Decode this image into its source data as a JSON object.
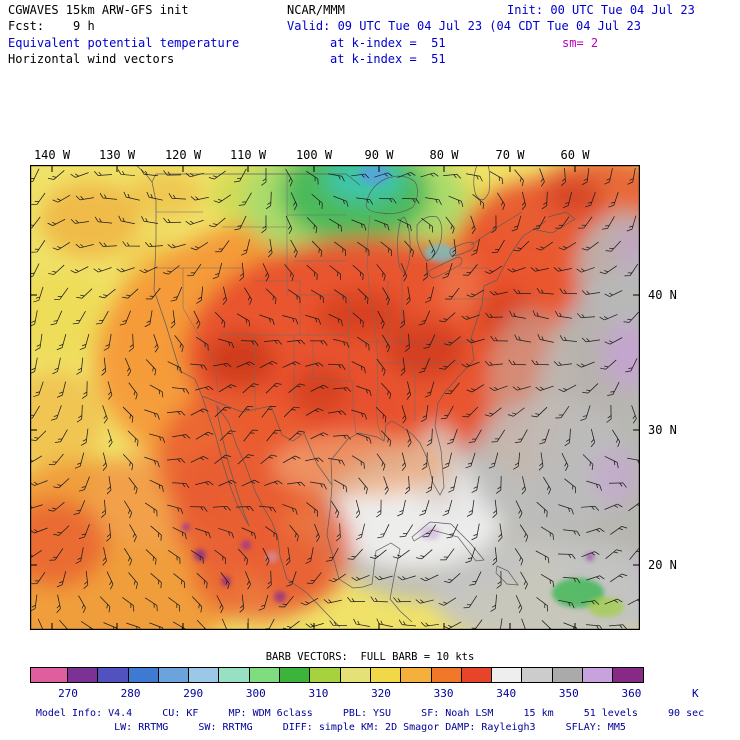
{
  "header": {
    "model_title": "CGWAVES 15km ARW-GFS init",
    "center_name": "NCAR/MMM",
    "init_time": "Init: 00 UTC Tue 04 Jul 23",
    "forecast": "Fcst:    9 h",
    "valid_time": "Valid: 09 UTC Tue 04 Jul 23 (04 CDT Tue 04 Jul 23",
    "field1_name": "Equivalent potential temperature",
    "field1_level": "at k-index =  51",
    "field2_name": "Horizontal wind vectors",
    "field2_level": "at k-index =  51",
    "smoothing": "sm= 2"
  },
  "map": {
    "lon_labels": [
      "140 W",
      "130 W",
      "120 W",
      "110 W",
      "100 W",
      "90 W",
      "80 W",
      "70 W",
      "60 W"
    ],
    "lat_labels": [
      "40 N",
      "30 N",
      "20 N"
    ]
  },
  "barb_legend": "BARB VECTORS:  FULL BARB = 10 kts",
  "colorbar": {
    "unit_label": "K",
    "tick_labels": [
      "270",
      "280",
      "290",
      "300",
      "310",
      "320",
      "330",
      "340",
      "350",
      "360"
    ],
    "segment_colors": [
      "#df5f9e",
      "#7b3294",
      "#5152c0",
      "#3f7ad2",
      "#6ba3dc",
      "#9cc8e8",
      "#98e0c4",
      "#7fdc7f",
      "#3cb43c",
      "#a6d23e",
      "#e4e277",
      "#f0d848",
      "#f5b03c",
      "#f07828",
      "#e8442a",
      "#eeeeee",
      "#cccccc",
      "#aaaaaa",
      "#c8a2dc",
      "#862a86"
    ],
    "segment_ranges": [
      "<270",
      "270-275",
      "275-280",
      "280-285",
      "285-290",
      "290-295",
      "295-300",
      "300-305",
      "305-310",
      "310-315",
      "315-320",
      "320-325",
      "325-330",
      "330-335",
      "335-340",
      "340-345",
      "345-350",
      "350-355",
      "355-360",
      ">360"
    ]
  },
  "footer": {
    "line1": "Model Info: V4.4     CU: KF     MP: WDM 6class     PBL: YSU     SF: Noah LSM     15 km     51 levels     90 sec",
    "line2": "LW: RRTMG     SW: RRTMG     DIFF: simple KM: 2D Smagor DAMP: Rayleigh3     SFLAY: MM5"
  },
  "colors": {
    "black": "#000000",
    "blue": "#0000cc",
    "magenta": "#bb00bb",
    "navy": "#000099"
  },
  "chart_data": {
    "type": "heatmap",
    "title": "Equivalent potential temperature (K) with horizontal wind vectors at k-index = 51",
    "model": "CGWAVES 15km ARW-GFS init, 9 h forecast",
    "valid": "09 UTC Tue 04 Jul 23 (04 CDT Tue 04 Jul 23",
    "init": "00 UTC Tue 04 Jul 23",
    "x_axis": {
      "label": "longitude",
      "ticks": [
        "140 W",
        "130 W",
        "120 W",
        "110 W",
        "100 W",
        "90 W",
        "80 W",
        "70 W",
        "60 W"
      ]
    },
    "y_axis": {
      "label": "latitude",
      "ticks": [
        "40 N",
        "30 N",
        "20 N"
      ]
    },
    "color_scale": {
      "unit": "K",
      "ticks": [
        270,
        280,
        290,
        300,
        310,
        320,
        330,
        340,
        350,
        360
      ],
      "interval_K": 5,
      "colors": [
        "#df5f9e",
        "#7b3294",
        "#5152c0",
        "#3f7ad2",
        "#6ba3dc",
        "#9cc8e8",
        "#98e0c4",
        "#7fdc7f",
        "#3cb43c",
        "#a6d23e",
        "#e4e277",
        "#f0d848",
        "#f5b03c",
        "#f07828",
        "#e8442a",
        "#eeeeee",
        "#cccccc",
        "#aaaaaa",
        "#c8a2dc",
        "#862a86"
      ]
    },
    "wind_vector_scale": "full barb = 10 kts",
    "field_estimates": [
      {
        "region": "central and eastern US (plains, midwest, east coast)",
        "theta_e_K": "330-340"
      },
      {
        "region": "desert southwest / interior Mexico",
        "theta_e_K": "325-340"
      },
      {
        "region": "northern Rockies and high plains",
        "theta_e_K": "315-330"
      },
      {
        "region": "south-central Canada (green/cyan pocket)",
        "theta_e_K": "290-310"
      },
      {
        "region": "eastern Canada / New England",
        "theta_e_K": "330-340"
      },
      {
        "region": "Pacific off west coast",
        "theta_e_K": "310-325"
      },
      {
        "region": "subtropical Pacific (southwest corner)",
        "theta_e_K": "325-335"
      },
      {
        "region": "Gulf of Mexico",
        "theta_e_K": "340-350"
      },
      {
        "region": "western Atlantic and Caribbean",
        "theta_e_K": "345-360"
      },
      {
        "region": "Mexican highland specks",
        "theta_e_K": ">355"
      }
    ]
  }
}
